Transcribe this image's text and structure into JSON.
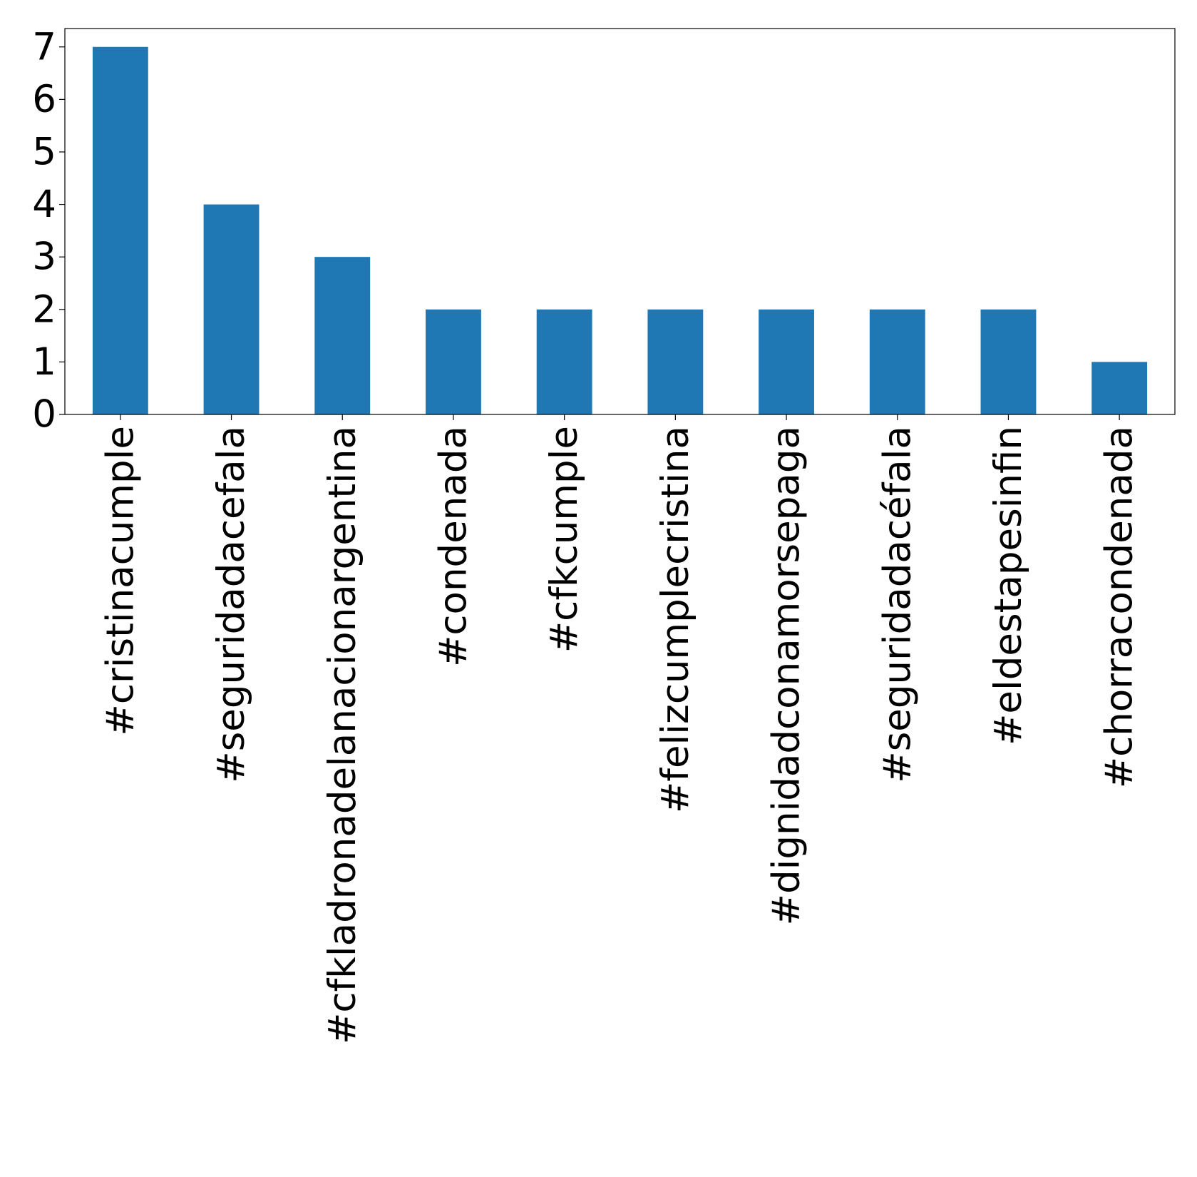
{
  "chart_data": {
    "type": "bar",
    "title": "",
    "xlabel": "",
    "ylabel": "",
    "categories": [
      "#cristinacumple",
      "#seguridadacefala",
      "#cfkladronadelanacionargentina",
      "#condenada",
      "#cfkcumple",
      "#felizcumplecristina",
      "#dignidadconamorsepaga",
      "#seguridadacéfala",
      "#eldestapesinfin",
      "#chorracondenada"
    ],
    "values": [
      7,
      4,
      3,
      2,
      2,
      2,
      2,
      2,
      2,
      1
    ],
    "ylim": [
      0,
      7.35
    ],
    "yticks": [
      0,
      1,
      2,
      3,
      4,
      5,
      6,
      7
    ],
    "bar_color": "#1f77b4",
    "grid": false,
    "legend": "none"
  }
}
